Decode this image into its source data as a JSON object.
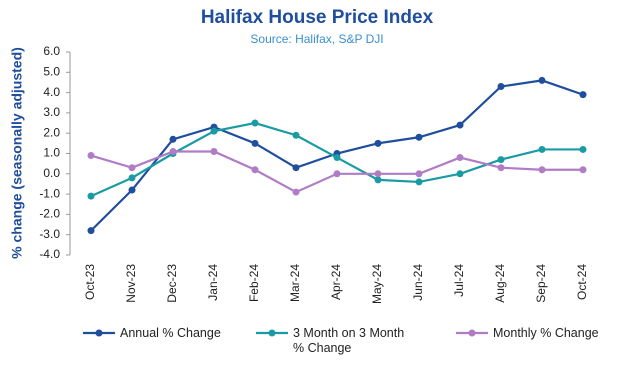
{
  "chart_data": {
    "type": "line",
    "title": "Halifax House Price Index",
    "subtitle": "Source: Halifax,  S&P DJI",
    "y_label": "% change (seasonally adjusted)",
    "categories": [
      "Oct-23",
      "Nov-23",
      "Dec-23",
      "Jan-24",
      "Feb-24",
      "Mar-24",
      "Apr-24",
      "May-24",
      "Jun-24",
      "Jul-24",
      "Aug-24",
      "Sep-24",
      "Oct-24"
    ],
    "series": [
      {
        "name": "Annual % Change",
        "color": "#1f4e9c",
        "values": [
          -2.8,
          -0.8,
          1.7,
          2.3,
          1.5,
          0.3,
          1.0,
          1.5,
          1.8,
          2.4,
          4.3,
          4.6,
          3.9
        ]
      },
      {
        "name": "3 Month on 3 Month % Change",
        "color": "#1a9ba3",
        "values": [
          -1.1,
          -0.2,
          1.0,
          2.1,
          2.5,
          1.9,
          0.8,
          -0.3,
          -0.4,
          0.0,
          0.7,
          1.2,
          1.2
        ]
      },
      {
        "name": "Monthly % Change",
        "color": "#b07cc6",
        "values": [
          0.9,
          0.3,
          1.1,
          1.1,
          0.2,
          -0.9,
          0.0,
          0.0,
          0.0,
          0.8,
          0.3,
          0.2,
          0.2
        ]
      }
    ],
    "ylim": [
      -4,
      6
    ],
    "yticks": [
      {
        "value": -4,
        "label": "-4.0"
      },
      {
        "value": -3,
        "label": "-3.0"
      },
      {
        "value": -2,
        "label": "-2.0"
      },
      {
        "value": -1,
        "label": "-1.0"
      },
      {
        "value": 0,
        "label": "0.0"
      },
      {
        "value": 1,
        "label": "1.0"
      },
      {
        "value": 2,
        "label": "2.0"
      },
      {
        "value": 3,
        "label": "3.0"
      },
      {
        "value": 4,
        "label": "4.0"
      },
      {
        "value": 5,
        "label": "5.0"
      },
      {
        "value": 6,
        "label": "6.0"
      }
    ],
    "grid": false,
    "legend": "bottom"
  }
}
